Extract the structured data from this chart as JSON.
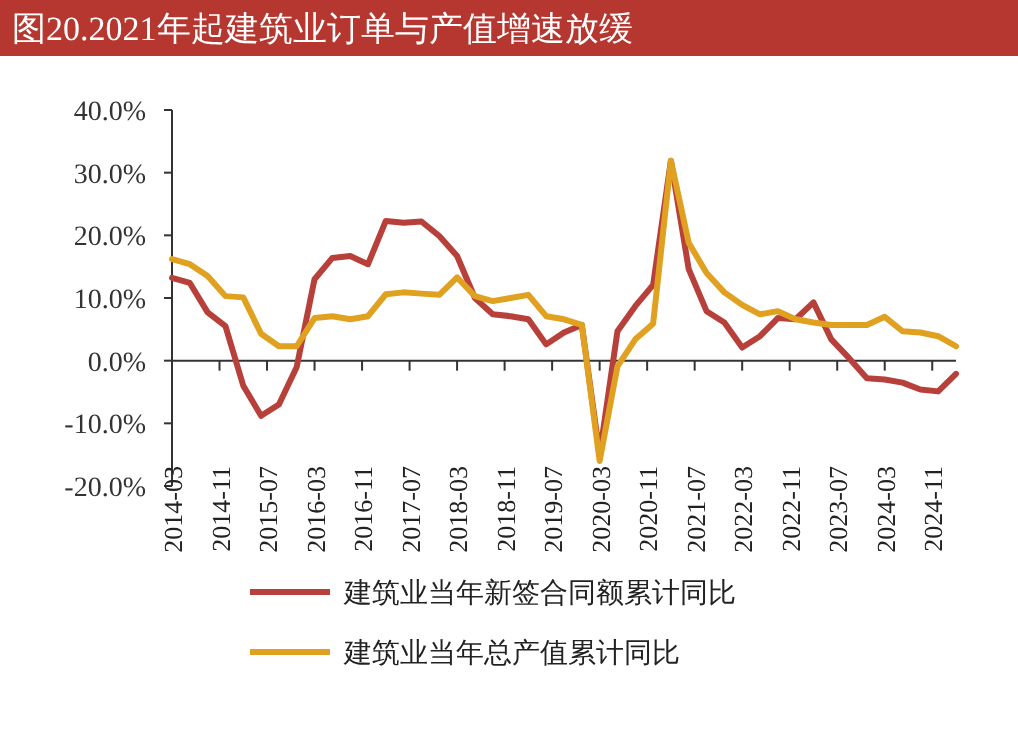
{
  "chart_data": {
    "type": "line",
    "title": "图20.2021年起建筑业订单与产值增速放缓",
    "x": [
      "2014-03",
      "2014-06",
      "2014-09",
      "2014-12",
      "2015-03",
      "2015-06",
      "2015-09",
      "2015-12",
      "2016-03",
      "2016-06",
      "2016-09",
      "2016-12",
      "2017-03",
      "2017-06",
      "2017-09",
      "2017-12",
      "2018-03",
      "2018-06",
      "2018-09",
      "2018-12",
      "2019-03",
      "2019-06",
      "2019-09",
      "2019-12",
      "2020-03",
      "2020-06",
      "2020-09",
      "2020-12",
      "2021-03",
      "2021-06",
      "2021-09",
      "2021-12",
      "2022-03",
      "2022-06",
      "2022-09",
      "2022-12",
      "2023-03",
      "2023-06",
      "2023-09",
      "2023-12",
      "2024-03",
      "2024-06",
      "2024-09",
      "2024-12",
      "2025-03"
    ],
    "series": [
      {
        "name": "建筑业当年新签合同额累计同比",
        "color": "#b8403a",
        "values": [
          13.2,
          12.4,
          7.7,
          5.5,
          -4,
          -8.8,
          -7,
          -1,
          13,
          16.4,
          16.7,
          15.4,
          22.3,
          22,
          22.2,
          19.9,
          16.7,
          10,
          7.4,
          7.1,
          6.6,
          2.6,
          4.5,
          5.7,
          -15,
          4.7,
          8.7,
          12.1,
          31.9,
          14.6,
          7.9,
          6.1,
          2.1,
          3.9,
          6.8,
          6.6,
          9.3,
          3.4,
          0.4,
          -2.8,
          -3,
          -3.5,
          -4.6,
          -4.9,
          -2.1
        ]
      },
      {
        "name": "建筑业当年总产值累计同比",
        "color": "#e0a020",
        "values": [
          16.2,
          15.4,
          13.5,
          10.3,
          10.1,
          4.3,
          2.3,
          2.3,
          6.8,
          7.1,
          6.6,
          7.1,
          10.6,
          10.9,
          10.7,
          10.5,
          13.3,
          10.3,
          9.5,
          10,
          10.5,
          7.1,
          6.6,
          5.7,
          -16,
          -0.9,
          3.4,
          5.9,
          31.9,
          18.8,
          14,
          10.9,
          8.9,
          7.4,
          7.9,
          6.6,
          6.1,
          5.7,
          5.7,
          5.7,
          7,
          4.7,
          4.5,
          3.9,
          2.3
        ]
      }
    ],
    "xlim": [
      "2014-03",
      "2025-03"
    ],
    "xticks": [
      "2014-03",
      "2014-11",
      "2015-07",
      "2016-03",
      "2016-11",
      "2017-07",
      "2018-03",
      "2018-11",
      "2019-07",
      "2020-03",
      "2020-11",
      "2021-07",
      "2022-03",
      "2022-11",
      "2023-07",
      "2024-03",
      "2024-11"
    ],
    "ylim": [
      -20,
      40
    ],
    "yticks": [
      {
        "value": -20,
        "label": "-20.0%"
      },
      {
        "value": -10,
        "label": "-10.0%"
      },
      {
        "value": 0,
        "label": "0.0%"
      },
      {
        "value": 10,
        "label": "10.0%"
      },
      {
        "value": 20,
        "label": "20.0%"
      },
      {
        "value": 30,
        "label": "30.0%"
      },
      {
        "value": 40,
        "label": "40.0%"
      }
    ],
    "legend": "bottom"
  }
}
